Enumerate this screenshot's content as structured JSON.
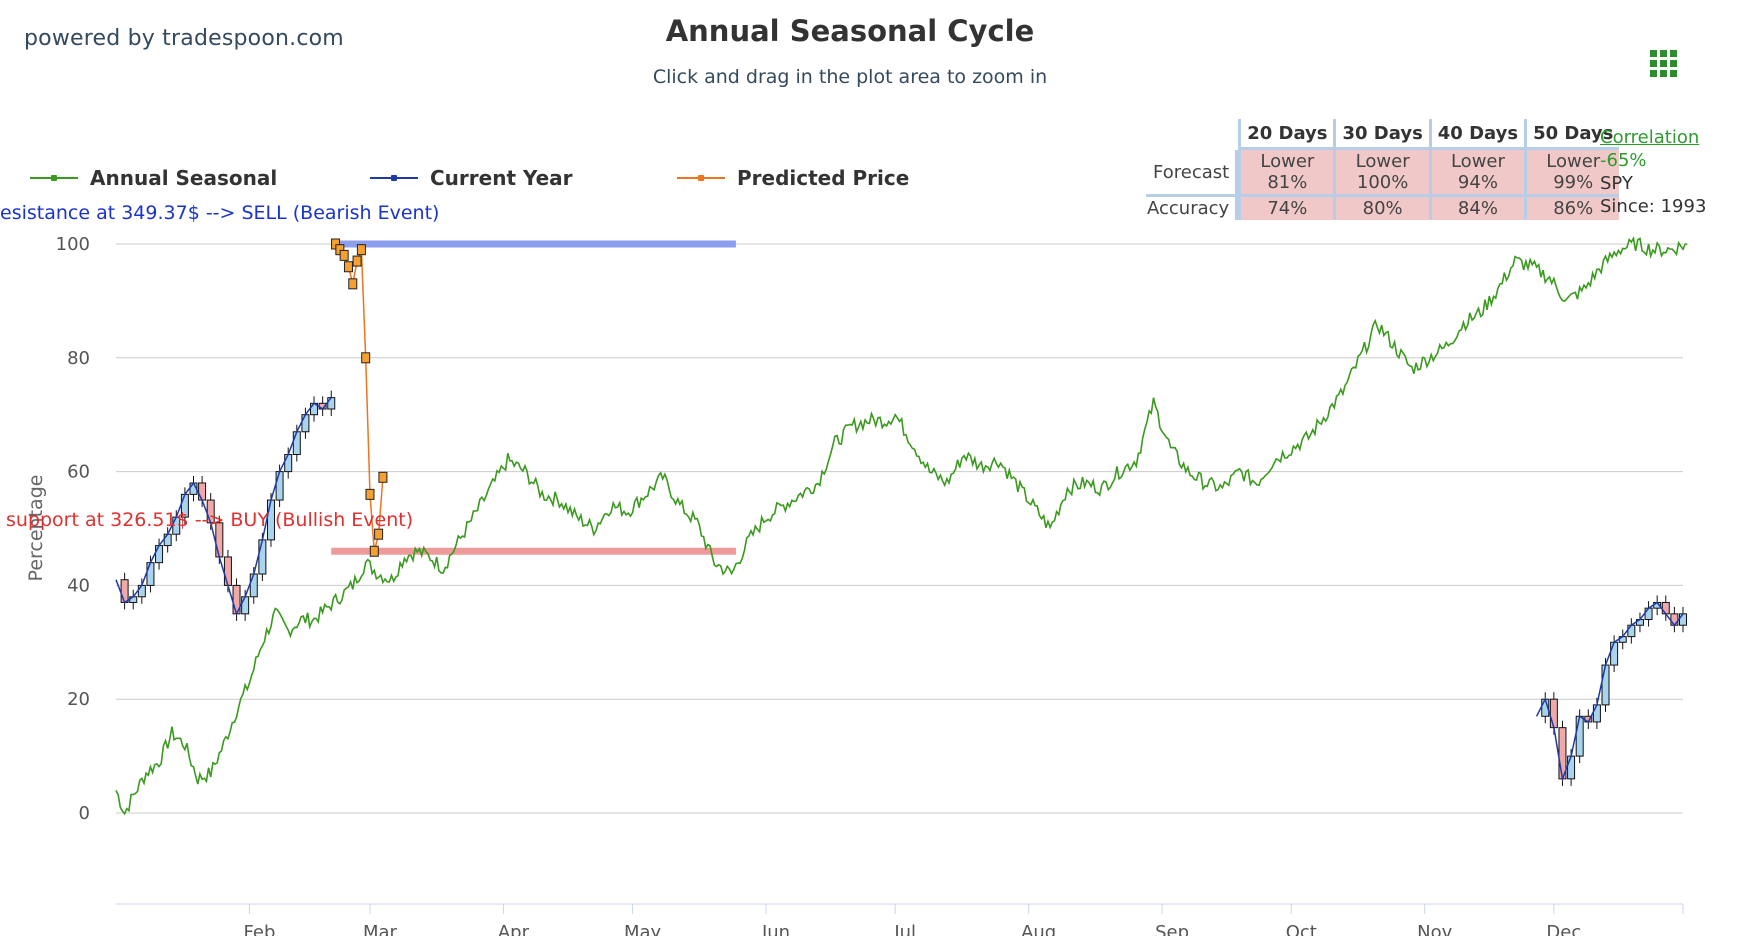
{
  "brand": "powered by tradespoon.com",
  "chart_data": {
    "type": "line",
    "title": "Annual Seasonal Cycle",
    "subtitle": "Click and drag in the plot area to zoom in",
    "ylabel": "Percentage",
    "xlabel": "",
    "ylim": [
      -16,
      100
    ],
    "yticks": [
      0,
      20,
      40,
      60,
      80,
      100
    ],
    "xticks": [
      {
        "label": "Feb",
        "day": 32
      },
      {
        "label": "Mar",
        "day": 60
      },
      {
        "label": "Apr",
        "day": 91
      },
      {
        "label": "May",
        "day": 121
      },
      {
        "label": "Jun",
        "day": 152
      },
      {
        "label": "Jul",
        "day": 182
      },
      {
        "label": "Aug",
        "day": 213
      },
      {
        "label": "Sep",
        "day": 244
      },
      {
        "label": "Oct",
        "day": 274
      },
      {
        "label": "Nov",
        "day": 305
      },
      {
        "label": "Dec",
        "day": 335
      }
    ],
    "grid": true,
    "legend_position": "top-left",
    "series": [
      {
        "name": "Annual Seasonal",
        "color": "#3a9a1e",
        "x": [
          1,
          3,
          5,
          8,
          11,
          14,
          17,
          20,
          23,
          26,
          29,
          32,
          35,
          38,
          41,
          44,
          47,
          50,
          53,
          56,
          59,
          62,
          65,
          68,
          71,
          74,
          77,
          80,
          84,
          88,
          92,
          96,
          100,
          104,
          108,
          112,
          116,
          120,
          124,
          128,
          132,
          136,
          140,
          144,
          148,
          152,
          156,
          160,
          164,
          168,
          172,
          176,
          180,
          182,
          186,
          190,
          194,
          198,
          202,
          206,
          210,
          214,
          218,
          222,
          226,
          230,
          234,
          238,
          242,
          246,
          250,
          254,
          258,
          262,
          266,
          270,
          274,
          278,
          282,
          286,
          290,
          294,
          298,
          302,
          306,
          310,
          314,
          318,
          322,
          326,
          330,
          334,
          338,
          342,
          346,
          350,
          354,
          358,
          362,
          366
        ],
        "y": [
          4,
          0,
          3,
          7,
          9,
          14,
          12,
          6,
          7,
          12,
          18,
          23,
          30,
          35,
          32,
          34,
          34,
          36,
          38,
          40,
          44,
          42,
          41,
          45,
          46,
          45,
          43,
          47,
          52,
          57,
          62,
          60,
          56,
          55,
          52,
          50,
          54,
          53,
          56,
          59,
          54,
          51,
          44,
          42,
          48,
          52,
          54,
          56,
          58,
          65,
          68,
          69,
          69,
          70,
          65,
          60,
          58,
          63,
          61,
          62,
          58,
          54,
          50,
          57,
          58,
          57,
          60,
          62,
          72,
          64,
          60,
          58,
          57,
          60,
          58,
          62,
          64,
          66,
          70,
          74,
          80,
          86,
          82,
          78,
          80,
          82,
          86,
          88,
          92,
          97,
          96,
          94,
          90,
          92,
          96,
          99,
          100,
          99,
          99,
          100
        ]
      },
      {
        "name": "Current Year",
        "color": "#1f3aa8",
        "x": [
          1,
          3,
          5,
          7,
          9,
          11,
          13,
          15,
          17,
          19,
          21,
          23,
          25,
          27,
          29,
          31,
          33,
          35,
          37,
          39,
          41,
          43,
          45,
          47,
          49,
          51,
          331,
          333,
          335,
          337,
          339,
          341,
          343,
          345,
          347,
          349,
          351,
          353,
          355,
          357,
          359,
          361,
          363,
          365
        ],
        "y": [
          41,
          37,
          38,
          40,
          44,
          47,
          49,
          52,
          56,
          58,
          55,
          51,
          45,
          40,
          35,
          38,
          42,
          48,
          55,
          60,
          63,
          67,
          70,
          72,
          71,
          73,
          17,
          20,
          15,
          6,
          10,
          17,
          16,
          19,
          26,
          30,
          31,
          33,
          34,
          36,
          37,
          35,
          33,
          35
        ]
      },
      {
        "name": "Predicted Price",
        "color": "#ee7420",
        "x": [
          52,
          53,
          54,
          55,
          56,
          57,
          58,
          59,
          60,
          61,
          62,
          63
        ],
        "y": [
          100,
          99,
          98,
          96,
          93,
          97,
          99,
          80,
          56,
          46,
          49,
          59
        ]
      }
    ],
    "annotations": [
      {
        "text": "esistance at 349.37$ --> SELL (Bearish Event)",
        "color": "#1a33cc",
        "level": 100,
        "day_from": 51,
        "day_to": 145,
        "band_color": "#8c9ef0"
      },
      {
        "text": "support at 326.51$ --> BUY (Bullish Event)",
        "color": "#e03030",
        "level": 46,
        "day_from": 51,
        "day_to": 145,
        "band_color": "#ee9a9a"
      }
    ]
  },
  "forecast_table": {
    "headers": [
      "20 Days",
      "30 Days",
      "40 Days",
      "50 Days"
    ],
    "forecast_label": "Forecast",
    "accuracy_label": "Accuracy",
    "forecast": [
      [
        "Lower",
        "81%"
      ],
      [
        "Lower",
        "100%"
      ],
      [
        "Lower",
        "94%"
      ],
      [
        "Lower",
        "99%"
      ]
    ],
    "accuracy": [
      "74%",
      "80%",
      "84%",
      "86%"
    ],
    "cell_color": "#f0c8c8"
  },
  "correlation": {
    "link": "Correlation",
    "value": "-65%",
    "symbol": "SPY",
    "since": "Since: 1993"
  }
}
